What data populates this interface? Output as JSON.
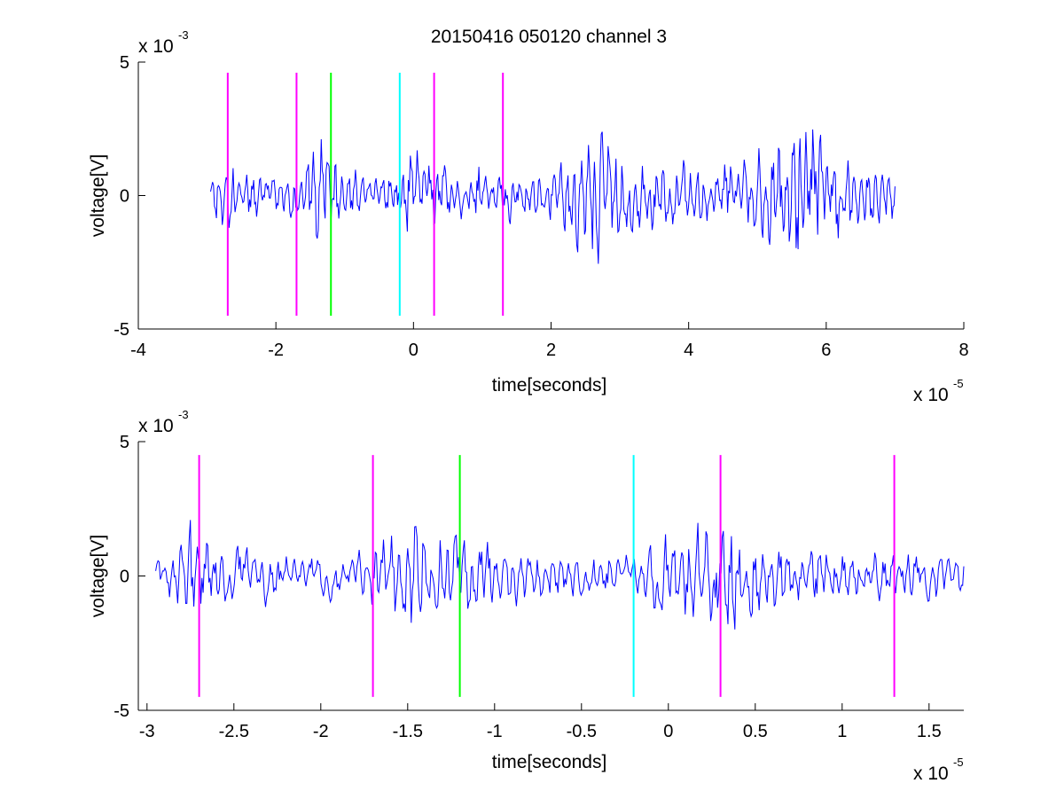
{
  "figure": {
    "title": "20150416 050120 channel 3"
  },
  "chart_data": [
    {
      "type": "line",
      "title": "20150416 050120 channel 3",
      "xlabel": "time[seconds]",
      "ylabel": "voltage[V]",
      "xlim": [
        -4e-05,
        8e-05
      ],
      "ylim": [
        -0.005,
        0.005
      ],
      "x_ticks": [
        -4,
        -2,
        0,
        2,
        4,
        6,
        8
      ],
      "x_tick_labels": [
        "-4",
        "-2",
        "0",
        "2",
        "4",
        "6",
        "8"
      ],
      "x_multiplier_base": "x 10",
      "x_multiplier_exp": "-5",
      "y_ticks": [
        -5,
        0,
        5
      ],
      "y_tick_labels": [
        "-5",
        "0",
        "5"
      ],
      "y_multiplier_base": "x 10",
      "y_multiplier_exp": "-3",
      "grid": false,
      "series": [
        {
          "color": "#0000ff",
          "x_start": -2.95e-05,
          "x_end": 7e-05,
          "envelope": [
            {
              "x": -2.95e-05,
              "amp": 0.0005
            },
            {
              "x": -2.75e-05,
              "amp": 0.0018
            },
            {
              "x": -2.5e-05,
              "amp": 0.0012
            },
            {
              "x": -2.2e-05,
              "amp": 0.0008
            },
            {
              "x": -1.6e-05,
              "amp": 0.001
            },
            {
              "x": -1.35e-05,
              "amp": 0.0025
            },
            {
              "x": -1e-05,
              "amp": 0.0011
            },
            {
              "x": -4e-06,
              "amp": 0.0008
            },
            {
              "x": 0.0,
              "amp": 0.0018
            },
            {
              "x": 5e-06,
              "amp": 0.0012
            },
            {
              "x": 1.5e-05,
              "amp": 0.0009
            },
            {
              "x": 2e-05,
              "amp": 0.0012
            },
            {
              "x": 2.6e-05,
              "amp": 0.0028
            },
            {
              "x": 3.2e-05,
              "amp": 0.0014
            },
            {
              "x": 4e-05,
              "amp": 0.0012
            },
            {
              "x": 4.8e-05,
              "amp": 0.0014
            },
            {
              "x": 5.2e-05,
              "amp": 0.0022
            },
            {
              "x": 5.7e-05,
              "amp": 0.0035
            },
            {
              "x": 6.2e-05,
              "amp": 0.0018
            },
            {
              "x": 7e-05,
              "amp": 0.001
            }
          ],
          "samples": 700,
          "seed": 17
        }
      ],
      "vertical_markers": [
        {
          "x": -2.7e-05,
          "color": "#ff00ff",
          "y_from": -0.0045,
          "y_to": 0.0046
        },
        {
          "x": -1.7e-05,
          "color": "#ff00ff",
          "y_from": -0.0045,
          "y_to": 0.0046
        },
        {
          "x": -1.2e-05,
          "color": "#00ff00",
          "y_from": -0.0045,
          "y_to": 0.0046
        },
        {
          "x": -2e-06,
          "color": "#00ffff",
          "y_from": -0.0045,
          "y_to": 0.0046
        },
        {
          "x": 3e-06,
          "color": "#ff00ff",
          "y_from": -0.0045,
          "y_to": 0.0046
        },
        {
          "x": 1.3e-05,
          "color": "#ff00ff",
          "y_from": -0.0045,
          "y_to": 0.0046
        }
      ]
    },
    {
      "type": "line",
      "title": "",
      "xlabel": "time[seconds]",
      "ylabel": "voltage[V]",
      "xlim": [
        -3.05e-05,
        1.7e-05
      ],
      "ylim": [
        -0.005,
        0.005
      ],
      "x_ticks": [
        -3,
        -2.5,
        -2,
        -1.5,
        -1,
        -0.5,
        0,
        0.5,
        1,
        1.5
      ],
      "x_tick_labels": [
        "-3",
        "-2.5",
        "-2",
        "-1.5",
        "-1",
        "-0.5",
        "0",
        "0.5",
        "1",
        "1.5"
      ],
      "x_multiplier_base": "x 10",
      "x_multiplier_exp": "-5",
      "y_ticks": [
        -5,
        0,
        5
      ],
      "y_tick_labels": [
        "-5",
        "0",
        "5"
      ],
      "y_multiplier_base": "x 10",
      "y_multiplier_exp": "-3",
      "grid": false,
      "series": [
        {
          "color": "#0000ff",
          "x_start": -2.95e-05,
          "x_end": 1.7e-05,
          "envelope": [
            {
              "x": -2.95e-05,
              "amp": 0.0006
            },
            {
              "x": -2.75e-05,
              "amp": 0.002
            },
            {
              "x": -2.5e-05,
              "amp": 0.0013
            },
            {
              "x": -2.2e-05,
              "amp": 0.0009
            },
            {
              "x": -1.8e-05,
              "amp": 0.0008
            },
            {
              "x": -1.4e-05,
              "amp": 0.0027
            },
            {
              "x": -1.1e-05,
              "amp": 0.0014
            },
            {
              "x": -6e-06,
              "amp": 0.0008
            },
            {
              "x": -2e-06,
              "amp": 0.0009
            },
            {
              "x": 1e-06,
              "amp": 0.0022
            },
            {
              "x": 5e-06,
              "amp": 0.0017
            },
            {
              "x": 1e-05,
              "amp": 0.001
            },
            {
              "x": 1.7e-05,
              "amp": 0.0009
            }
          ],
          "samples": 700,
          "seed": 29
        }
      ],
      "vertical_markers": [
        {
          "x": -2.7e-05,
          "color": "#ff00ff",
          "y_from": -0.0045,
          "y_to": 0.0045
        },
        {
          "x": -1.7e-05,
          "color": "#ff00ff",
          "y_from": -0.0045,
          "y_to": 0.0045
        },
        {
          "x": -1.2e-05,
          "color": "#00ff00",
          "y_from": -0.0045,
          "y_to": 0.0045
        },
        {
          "x": -2e-06,
          "color": "#00ffff",
          "y_from": -0.0045,
          "y_to": 0.0045
        },
        {
          "x": 3e-06,
          "color": "#ff00ff",
          "y_from": -0.0045,
          "y_to": 0.0045
        },
        {
          "x": 1.3e-05,
          "color": "#ff00ff",
          "y_from": -0.0045,
          "y_to": 0.0045
        }
      ]
    }
  ]
}
